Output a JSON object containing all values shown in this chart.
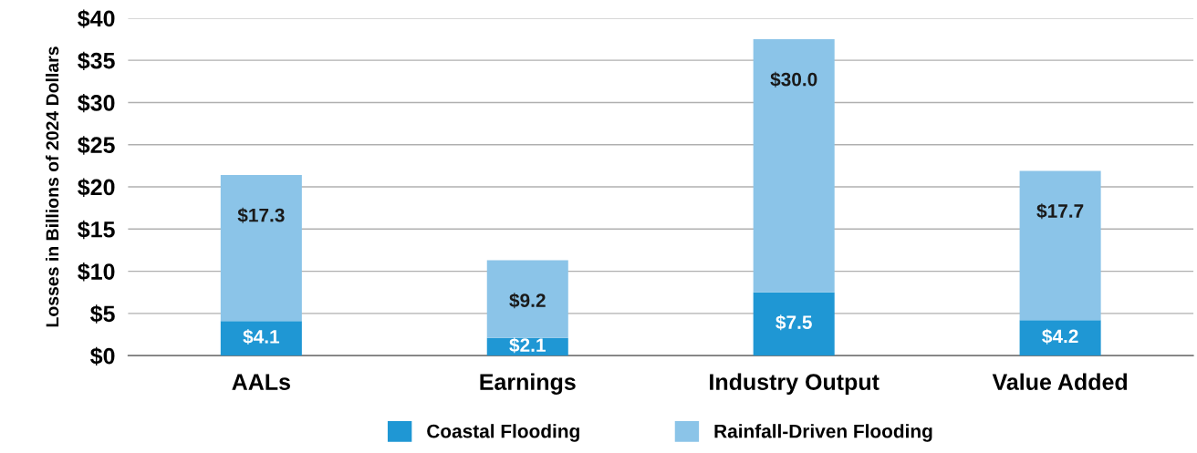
{
  "chart_data": {
    "type": "bar",
    "stacked": true,
    "ylabel": "Losses in Billions of 2024 Dollars",
    "categories": [
      "AALs",
      "Earnings",
      "Industry Output",
      "Value Added"
    ],
    "series": [
      {
        "name": "Coastal Flooding",
        "color": "#1f97d4",
        "values": [
          4.1,
          2.1,
          7.5,
          4.2
        ],
        "value_labels": [
          "$4.1",
          "$2.1",
          "$7.5",
          "$4.2"
        ]
      },
      {
        "name": "Rainfall-Driven Flooding",
        "color": "#8bc4e8",
        "values": [
          17.3,
          9.2,
          30.0,
          17.7
        ],
        "value_labels": [
          "$17.3",
          "$9.2",
          "$30.0",
          "$17.7"
        ]
      }
    ],
    "ylim": [
      0,
      40
    ],
    "yticks": [
      {
        "value": 0,
        "label": "$0"
      },
      {
        "value": 5,
        "label": "$5"
      },
      {
        "value": 10,
        "label": "$10"
      },
      {
        "value": 15,
        "label": "$15"
      },
      {
        "value": 20,
        "label": "$20"
      },
      {
        "value": 25,
        "label": "$25"
      },
      {
        "value": 30,
        "label": "$30"
      },
      {
        "value": 35,
        "label": "$35"
      },
      {
        "value": 40,
        "label": "$40"
      }
    ],
    "grid": "y",
    "legend": "bottom"
  }
}
